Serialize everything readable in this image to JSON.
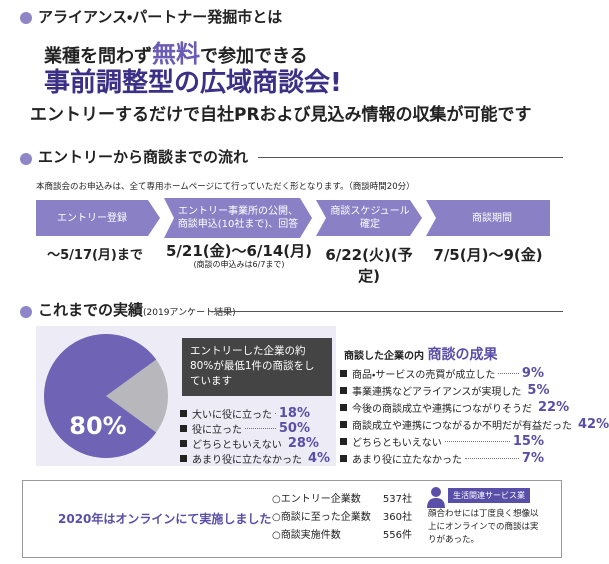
{
  "header": {
    "title": "アライアンス・パートナー発掘市とは"
  },
  "headline": {
    "line1_before": "業種を問わず",
    "line1_emphasis": "無料",
    "line1_after": "で参加できる",
    "line2": "事前調整型の広域商談会!",
    "line3": "エントリーするだけで自社PRおよび見込み情報の収集が可能です"
  },
  "flow": {
    "title": "エントリーから商談までの流れ",
    "note": "本商談会のお申込みは、全て専用ホームページにて行っていただく形となります。（商談時間20分）",
    "steps": [
      {
        "label": "エントリー登録",
        "date": "～5/17(月)まで"
      },
      {
        "label": "エントリー事業所の公開、商談申込(10社まで)、回答",
        "date": "5/21(金)～6/14(月)",
        "sub": "(商談の申込みは6/7まで)"
      },
      {
        "label": "商談スケジュール確定",
        "date": "6/22(火)(予定)"
      },
      {
        "label": "商談期間",
        "date": "7/5(月)～9(金)"
      }
    ]
  },
  "results": {
    "title": "これまでの実績",
    "subtitle": "(2019アンケート結果)",
    "pie": {
      "value": 80,
      "label": "80%"
    },
    "callout": "エントリーした企業の約80%が最低1件の商談をしています",
    "survey": [
      {
        "label": "大いに役に立った",
        "value": "18%"
      },
      {
        "label": "役に立った",
        "value": "50%"
      },
      {
        "label": "どちらともいえない",
        "value": "28%"
      },
      {
        "label": "あまり役に立たなかった",
        "value": "4%"
      }
    ],
    "outcome_title_prefix": "商談した企業の内",
    "outcome_title": "商談の成果",
    "outcomes": [
      {
        "label": "商品・サービスの売買が成立した",
        "value": "9%"
      },
      {
        "label": "事業連携などアライアンスが実現した",
        "value": "5%"
      },
      {
        "label": "今後の商談成立や連携につながりそうだ",
        "value": "22%"
      },
      {
        "label": "商談成立や連携につながるか不明だが有益だった",
        "value": "42%"
      },
      {
        "label": "どちらともいえない",
        "value": "15%"
      },
      {
        "label": "あまり役に立たなかった",
        "value": "7%"
      }
    ]
  },
  "online": {
    "title": "2020年はオンラインにて実施しました",
    "stats": [
      {
        "label": "○エントリー企業数",
        "value": "537社"
      },
      {
        "label": "○商談に至った企業数",
        "value": "360社"
      },
      {
        "label": "○商談実施件数",
        "value": "556件"
      }
    ],
    "badge": "生活関連サービス業",
    "quote": "顔合わせには丁度良く想像以上にオンラインでの商談は実りがあった。"
  }
}
